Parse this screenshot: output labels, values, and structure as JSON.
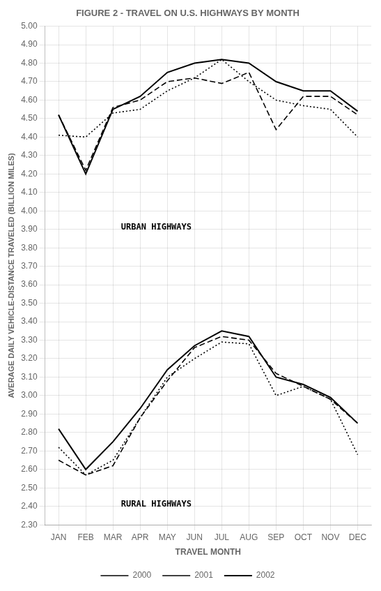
{
  "chart_data": {
    "type": "line",
    "title": "FIGURE 2 - TRAVEL ON U.S. HIGHWAYS BY MONTH",
    "x_label": "TRAVEL MONTH",
    "y_label": "AVERAGE DAILY VEHICLE-DISTANCE TRAVELED (BILLION MILES)",
    "categories": [
      "JAN",
      "FEB",
      "MAR",
      "APR",
      "MAY",
      "JUN",
      "JUL",
      "AUG",
      "SEP",
      "OCT",
      "NOV",
      "DEC"
    ],
    "series": [
      {
        "name": "2000",
        "color": "#000000",
        "line_style": "dotted",
        "values": [
          4.41,
          4.4,
          4.53,
          4.55,
          4.65,
          4.72,
          4.82,
          4.7,
          4.6,
          4.57,
          4.55,
          4.4
        ]
      },
      {
        "name": "2001",
        "color": "#000000",
        "line_style": "dashed",
        "values": [
          4.52,
          4.22,
          4.56,
          4.6,
          4.7,
          4.72,
          4.69,
          4.75,
          4.44,
          4.62,
          4.62,
          4.52
        ]
      },
      {
        "name": "2002",
        "color": "#000000",
        "line_style": "solid",
        "values": [
          4.52,
          4.2,
          4.55,
          4.62,
          4.75,
          4.8,
          4.82,
          4.8,
          4.7,
          4.65,
          4.65,
          4.54
        ]
      },
      {
        "name": "2000",
        "color": "#000000",
        "line_style": "dotted",
        "values": [
          2.72,
          2.57,
          2.65,
          2.88,
          3.1,
          3.2,
          3.29,
          3.28,
          3.0,
          3.05,
          2.98,
          2.68
        ]
      },
      {
        "name": "2001",
        "color": "#000000",
        "line_style": "dashed",
        "values": [
          2.65,
          2.57,
          2.62,
          2.88,
          3.08,
          3.26,
          3.32,
          3.3,
          3.12,
          3.05,
          2.98,
          2.85
        ]
      },
      {
        "name": "2002",
        "color": "#000000",
        "line_style": "solid",
        "values": [
          2.82,
          2.6,
          2.75,
          2.93,
          3.14,
          3.27,
          3.35,
          3.32,
          3.1,
          3.06,
          2.99,
          2.85
        ]
      }
    ],
    "annotations": [
      {
        "text": "URBAN HIGHWAYS",
        "x": 2.3,
        "y": 3.9
      },
      {
        "text": "RURAL HIGHWAYS",
        "x": 2.3,
        "y": 2.4
      }
    ],
    "ylim": [
      2.3,
      5.0
    ],
    "yticks": [
      {
        "value": 2.3,
        "label": "2.30"
      },
      {
        "value": 2.4,
        "label": "2.40"
      },
      {
        "value": 2.5,
        "label": "2.50"
      },
      {
        "value": 2.6,
        "label": "2.60"
      },
      {
        "value": 2.7,
        "label": "2.70"
      },
      {
        "value": 2.8,
        "label": "2.80"
      },
      {
        "value": 2.9,
        "label": "2.90"
      },
      {
        "value": 3.0,
        "label": "3.00"
      },
      {
        "value": 3.1,
        "label": "3.10"
      },
      {
        "value": 3.2,
        "label": "3.20"
      },
      {
        "value": 3.3,
        "label": "3.30"
      },
      {
        "value": 3.4,
        "label": "3.40"
      },
      {
        "value": 3.5,
        "label": "3.50"
      },
      {
        "value": 3.6,
        "label": "3.60"
      },
      {
        "value": 3.7,
        "label": "3.70"
      },
      {
        "value": 3.8,
        "label": "3.80"
      },
      {
        "value": 3.9,
        "label": "3.90"
      },
      {
        "value": 4.0,
        "label": "4.00"
      },
      {
        "value": 4.1,
        "label": "4.10"
      },
      {
        "value": 4.2,
        "label": "4.20"
      },
      {
        "value": 4.3,
        "label": "4.30"
      },
      {
        "value": 4.4,
        "label": "4.40"
      },
      {
        "value": 4.5,
        "label": "4.50"
      },
      {
        "value": 4.6,
        "label": "4.60"
      },
      {
        "value": 4.7,
        "label": "4.70"
      },
      {
        "value": 4.8,
        "label": "4.80"
      },
      {
        "value": 4.9,
        "label": "4.90"
      },
      {
        "value": 5.0,
        "label": "5.00"
      }
    ],
    "grid": true,
    "legend": "bottom"
  }
}
